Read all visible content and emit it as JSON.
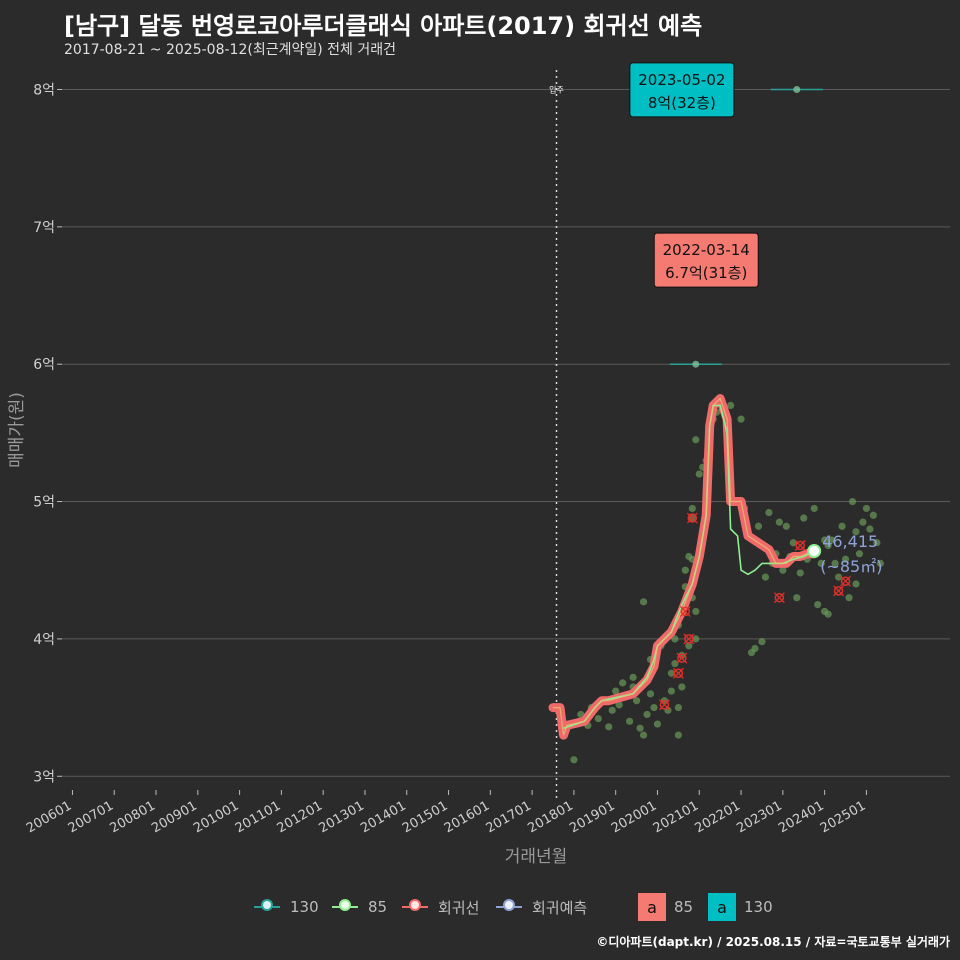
{
  "title": "[남구] 달동 번영로코아루더클래식 아파트(2017) 회귀선 예측",
  "subtitle": "2017-08-21 ~ 2025-08-12(최근계약일) 전체 거래건",
  "caption": "©디아파트(dapt.kr) / 2025.08.15 / 자료=국토교통부 실거래가",
  "colors": {
    "background": "#2b2b2b",
    "grid": "#5a5a5a",
    "s85": "#90ee90",
    "s130": "#2aa198",
    "regression": "#f06a6a",
    "forecast": "#8fa3d6",
    "label_red": "#f47a72",
    "label_teal": "#00bfc4",
    "points": "#6a9a5a",
    "cancel": "#e0302a"
  },
  "chart_data": {
    "type": "line",
    "xlabel": "거래년월",
    "ylabel": "매매가(원)",
    "x_ticks": [
      "200601",
      "200701",
      "200801",
      "200901",
      "201001",
      "201101",
      "201201",
      "201301",
      "201401",
      "201501",
      "201601",
      "201701",
      "201801",
      "201901",
      "202001",
      "202101",
      "202201",
      "202301",
      "202401",
      "202501"
    ],
    "y_ticks": [
      {
        "value": 3,
        "label": "3억"
      },
      {
        "value": 4,
        "label": "4억"
      },
      {
        "value": 5,
        "label": "5억"
      },
      {
        "value": 6,
        "label": "6억"
      },
      {
        "value": 7,
        "label": "7억"
      },
      {
        "value": 8,
        "label": "8억"
      }
    ],
    "ylim": [
      2.9,
      8.2
    ],
    "xlim": [
      "2005-10",
      "2027-01"
    ],
    "move_in": {
      "date": "2017-08",
      "label": "입주"
    },
    "regression": {
      "name": "회귀선",
      "points": [
        [
          "2017-07",
          3.5
        ],
        [
          "2017-09",
          3.5
        ],
        [
          "2017-10",
          3.3
        ],
        [
          "2017-11",
          3.37
        ],
        [
          "2018-04",
          3.4
        ],
        [
          "2018-07",
          3.5
        ],
        [
          "2018-09",
          3.55
        ],
        [
          "2018-11",
          3.55
        ],
        [
          "2019-06",
          3.6
        ],
        [
          "2019-10",
          3.7
        ],
        [
          "2019-12",
          3.8
        ],
        [
          "2020-01",
          3.95
        ],
        [
          "2020-05",
          4.05
        ],
        [
          "2020-08",
          4.2
        ],
        [
          "2020-11",
          4.4
        ],
        [
          "2021-01",
          4.6
        ],
        [
          "2021-03",
          4.9
        ],
        [
          "2021-04",
          5.55
        ],
        [
          "2021-05",
          5.7
        ],
        [
          "2021-07",
          5.75
        ],
        [
          "2021-09",
          5.6
        ],
        [
          "2021-10",
          5.0
        ],
        [
          "2022-01",
          5.0
        ],
        [
          "2022-03",
          4.75
        ],
        [
          "2022-06",
          4.7
        ],
        [
          "2022-09",
          4.65
        ],
        [
          "2022-11",
          4.55
        ],
        [
          "2023-02",
          4.55
        ],
        [
          "2023-04",
          4.6
        ],
        [
          "2023-06",
          4.6
        ],
        [
          "2023-08",
          4.62
        ],
        [
          "2023-10",
          4.62
        ]
      ]
    },
    "series": [
      {
        "name": "85",
        "line": [
          [
            "2017-10",
            3.35
          ],
          [
            "2018-04",
            3.4
          ],
          [
            "2018-07",
            3.5
          ],
          [
            "2018-09",
            3.55
          ],
          [
            "2019-06",
            3.6
          ],
          [
            "2019-10",
            3.72
          ],
          [
            "2019-12",
            3.85
          ],
          [
            "2020-01",
            3.95
          ],
          [
            "2020-05",
            4.05
          ],
          [
            "2020-08",
            4.25
          ],
          [
            "2020-11",
            4.4
          ],
          [
            "2021-01",
            4.6
          ],
          [
            "2021-03",
            4.9
          ],
          [
            "2021-04",
            5.55
          ],
          [
            "2021-05",
            5.7
          ],
          [
            "2021-07",
            5.7
          ],
          [
            "2021-09",
            5.5
          ],
          [
            "2021-10",
            4.8
          ],
          [
            "2021-12",
            4.75
          ],
          [
            "2022-01",
            4.5
          ],
          [
            "2022-03",
            4.47
          ],
          [
            "2022-05",
            4.5
          ],
          [
            "2022-07",
            4.55
          ],
          [
            "2022-10",
            4.55
          ],
          [
            "2023-01",
            4.55
          ],
          [
            "2023-04",
            4.58
          ],
          [
            "2023-07",
            4.6
          ],
          [
            "2023-10",
            4.64
          ]
        ],
        "end_value": "46,415",
        "end_area": "(~85㎡)"
      },
      {
        "name": "130",
        "points": [
          [
            "2020-12",
            6.0
          ],
          [
            "2023-05",
            8.0
          ]
        ]
      }
    ],
    "scatter": [
      [
        "2018-01",
        3.12
      ],
      [
        "2018-03",
        3.45
      ],
      [
        "2018-05",
        3.37
      ],
      [
        "2018-06",
        3.5
      ],
      [
        "2018-08",
        3.42
      ],
      [
        "2018-09",
        3.55
      ],
      [
        "2018-11",
        3.36
      ],
      [
        "2018-12",
        3.48
      ],
      [
        "2019-01",
        3.62
      ],
      [
        "2019-02",
        3.52
      ],
      [
        "2019-03",
        3.68
      ],
      [
        "2019-04",
        3.58
      ],
      [
        "2019-05",
        3.4
      ],
      [
        "2019-06",
        3.72
      ],
      [
        "2019-06",
        3.65
      ],
      [
        "2019-07",
        3.55
      ],
      [
        "2019-08",
        3.35
      ],
      [
        "2019-09",
        4.27
      ],
      [
        "2019-09",
        3.3
      ],
      [
        "2019-10",
        3.45
      ],
      [
        "2019-11",
        3.6
      ],
      [
        "2019-11",
        3.85
      ],
      [
        "2019-12",
        3.5
      ],
      [
        "2020-01",
        3.38
      ],
      [
        "2020-02",
        3.95
      ],
      [
        "2020-03",
        3.55
      ],
      [
        "2020-04",
        3.48
      ],
      [
        "2020-05",
        3.62
      ],
      [
        "2020-05",
        3.75
      ],
      [
        "2020-06",
        3.82
      ],
      [
        "2020-06",
        4.0
      ],
      [
        "2020-07",
        3.3
      ],
      [
        "2020-07",
        3.5
      ],
      [
        "2020-07",
        4.1
      ],
      [
        "2020-08",
        3.65
      ],
      [
        "2020-08",
        3.88
      ],
      [
        "2020-08",
        4.2
      ],
      [
        "2020-09",
        4.38
      ],
      [
        "2020-09",
        4.5
      ],
      [
        "2020-10",
        3.95
      ],
      [
        "2020-10",
        4.6
      ],
      [
        "2020-11",
        4.3
      ],
      [
        "2020-11",
        4.58
      ],
      [
        "2020-11",
        4.88
      ],
      [
        "2020-11",
        4.95
      ],
      [
        "2020-12",
        5.45
      ],
      [
        "2020-12",
        4.0
      ],
      [
        "2020-12",
        4.2
      ],
      [
        "2021-01",
        5.2
      ],
      [
        "2021-02",
        5.25
      ],
      [
        "2021-03",
        5.3
      ],
      [
        "2021-05",
        5.6
      ],
      [
        "2021-06",
        5.65
      ],
      [
        "2021-09",
        6.7
      ],
      [
        "2021-10",
        5.7
      ],
      [
        "2022-01",
        5.6
      ],
      [
        "2022-02",
        4.95
      ],
      [
        "2022-04",
        3.9
      ],
      [
        "2022-05",
        3.93
      ],
      [
        "2022-06",
        4.82
      ],
      [
        "2022-07",
        3.98
      ],
      [
        "2022-08",
        4.45
      ],
      [
        "2022-09",
        4.92
      ],
      [
        "2022-10",
        4.55
      ],
      [
        "2022-11",
        4.62
      ],
      [
        "2022-12",
        4.85
      ],
      [
        "2023-01",
        4.5
      ],
      [
        "2023-02",
        4.82
      ],
      [
        "2023-03",
        4.6
      ],
      [
        "2023-04",
        4.7
      ],
      [
        "2023-05",
        4.3
      ],
      [
        "2023-06",
        4.48
      ],
      [
        "2023-07",
        4.88
      ],
      [
        "2023-08",
        4.58
      ],
      [
        "2023-09",
        4.62
      ],
      [
        "2023-10",
        4.95
      ],
      [
        "2023-11",
        4.25
      ],
      [
        "2023-12",
        4.55
      ],
      [
        "2024-01",
        4.72
      ],
      [
        "2024-01",
        4.2
      ],
      [
        "2024-02",
        4.68
      ],
      [
        "2024-02",
        4.18
      ],
      [
        "2024-03",
        4.72
      ],
      [
        "2024-04",
        4.55
      ],
      [
        "2024-05",
        4.45
      ],
      [
        "2024-06",
        4.82
      ],
      [
        "2024-07",
        4.58
      ],
      [
        "2024-08",
        4.3
      ],
      [
        "2024-09",
        5.0
      ],
      [
        "2024-10",
        4.78
      ],
      [
        "2024-10",
        4.4
      ],
      [
        "2024-11",
        4.62
      ],
      [
        "2024-12",
        4.85
      ],
      [
        "2025-01",
        4.95
      ],
      [
        "2025-02",
        4.8
      ],
      [
        "2025-03",
        4.9
      ],
      [
        "2025-04",
        4.7
      ],
      [
        "2025-05",
        4.55
      ]
    ],
    "cancelled": [
      [
        "2020-03",
        3.52
      ],
      [
        "2020-07",
        3.75
      ],
      [
        "2020-08",
        3.86
      ],
      [
        "2020-09",
        4.2
      ],
      [
        "2020-10",
        4.0
      ],
      [
        "2020-11",
        4.88
      ],
      [
        "2022-12",
        4.3
      ],
      [
        "2023-06",
        4.68
      ],
      [
        "2024-05",
        4.35
      ],
      [
        "2024-07",
        4.42
      ]
    ],
    "annotations": [
      {
        "date_text": "2022-03-14",
        "value_text": "6.7억(31층)",
        "color": "#f47a72",
        "at": [
          "2021-03",
          6.75
        ]
      },
      {
        "date_text": "2023-05-02",
        "value_text": "8억(32층)",
        "color": "#00bfc4",
        "at": [
          "2020-08",
          7.99
        ]
      }
    ],
    "legend": [
      {
        "type": "line",
        "name": "130",
        "color": "#2aa198"
      },
      {
        "type": "line",
        "name": "85",
        "color": "#90ee90"
      },
      {
        "type": "line",
        "name": "회귀선",
        "color": "#f06a6a"
      },
      {
        "type": "line",
        "name": "회귀예측",
        "color": "#8fa3d6"
      },
      {
        "type": "box",
        "glyph": "a",
        "name": "85",
        "color": "#f47a72"
      },
      {
        "type": "box",
        "glyph": "a",
        "name": "130",
        "color": "#00bfc4"
      }
    ],
    "legend_position": "bottom"
  }
}
